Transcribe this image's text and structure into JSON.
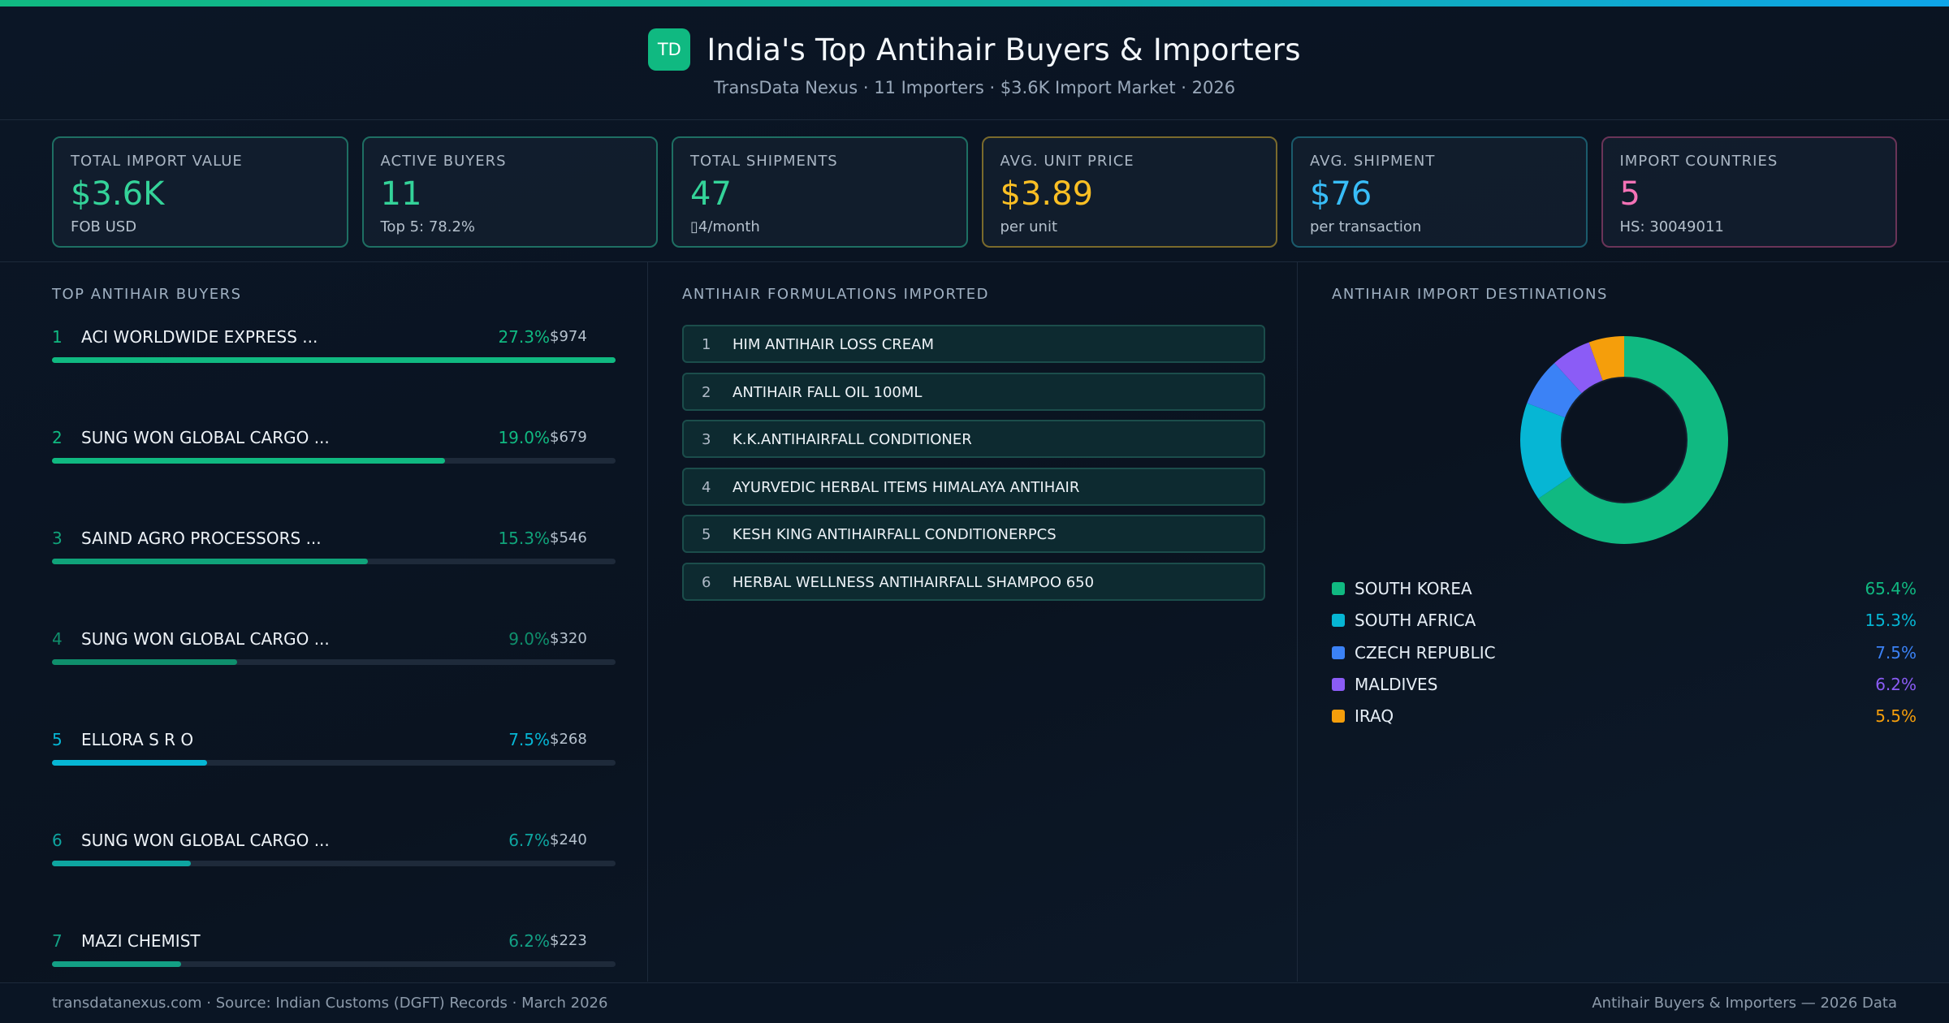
{
  "header": {
    "logo_text": "TD",
    "title": "India's Top Antihair Buyers & Importers",
    "subtitle": "TransData Nexus · 11 Importers · $3.6K Import Market · 2026"
  },
  "kpis": [
    {
      "label": "TOTAL IMPORT VALUE",
      "value": "$3.6K",
      "sub": "FOB USD",
      "color": "#34d399"
    },
    {
      "label": "ACTIVE BUYERS",
      "value": "11",
      "sub": "Top 5: 78.2%",
      "color": "#34d399"
    },
    {
      "label": "TOTAL SHIPMENTS",
      "value": "47",
      "sub": "▯4/month",
      "color": "#34d399"
    },
    {
      "label": "AVG. UNIT PRICE",
      "value": "$3.89",
      "sub": "per unit",
      "color": "#fbbf24"
    },
    {
      "label": "AVG. SHIPMENT",
      "value": "$76",
      "sub": "per transaction",
      "color": "#38bdf8"
    },
    {
      "label": "IMPORT COUNTRIES",
      "value": "5",
      "sub": "HS: 30049011",
      "color": "#f472b6"
    }
  ],
  "buyers_title": "TOP ANTIHAIR BUYERS",
  "buyers": [
    {
      "rank": "1",
      "name": "ACI WORLDWIDE EXPRESS ...",
      "pct_text": "27.3%",
      "value": "$974",
      "share": 1.0,
      "color": "#10b981"
    },
    {
      "rank": "2",
      "name": "SUNG WON GLOBAL CARGO ...",
      "pct_text": "19.0%",
      "value": "$679",
      "share": 0.697,
      "color": "#10b981"
    },
    {
      "rank": "3",
      "name": "SAIND AGRO PROCESSORS ...",
      "pct_text": "15.3%",
      "value": "$546",
      "share": 0.561,
      "color": "#10a37a"
    },
    {
      "rank": "4",
      "name": "SUNG WON GLOBAL CARGO ...",
      "pct_text": "9.0%",
      "value": "$320",
      "share": 0.329,
      "color": "#0f8f6c"
    },
    {
      "rank": "5",
      "name": "ELLORA S R O",
      "pct_text": "7.5%",
      "value": "$268",
      "share": 0.275,
      "color": "#06b6d4"
    },
    {
      "rank": "6",
      "name": "SUNG WON GLOBAL CARGO ...",
      "pct_text": "6.7%",
      "value": "$240",
      "share": 0.246,
      "color": "#0ea5a0"
    },
    {
      "rank": "7",
      "name": "MAZI CHEMIST",
      "pct_text": "6.2%",
      "value": "$223",
      "share": 0.229,
      "color": "#13a085"
    }
  ],
  "products_title": "ANTIHAIR FORMULATIONS IMPORTED",
  "products": [
    {
      "rank": "1",
      "name": "HIM ANTIHAIR LOSS CREAM"
    },
    {
      "rank": "2",
      "name": "ANTIHAIR FALL OIL 100ML"
    },
    {
      "rank": "3",
      "name": "K.K.ANTIHAIRFALL CONDITIONER"
    },
    {
      "rank": "4",
      "name": "AYURVEDIC HERBAL ITEMS HIMALAYA ANTIHAIR"
    },
    {
      "rank": "5",
      "name": "KESH KING ANTIHAIRFALL CONDITIONERPCS"
    },
    {
      "rank": "6",
      "name": "HERBAL WELLNESS ANTIHAIRFALL SHAMPOO 650"
    }
  ],
  "destinations_title": "ANTIHAIR IMPORT DESTINATIONS",
  "chart_data": {
    "type": "pie",
    "title": "ANTIHAIR IMPORT DESTINATIONS",
    "categories": [
      "SOUTH KOREA",
      "SOUTH AFRICA",
      "CZECH REPUBLIC",
      "MALDIVES",
      "IRAQ"
    ],
    "values": [
      65.4,
      15.3,
      7.5,
      6.2,
      5.5
    ],
    "labels": [
      "65.4%",
      "15.3%",
      "7.5%",
      "6.2%",
      "5.5%"
    ],
    "colors": [
      "#10b981",
      "#06b6d4",
      "#3b82f6",
      "#8b5cf6",
      "#f59e0b"
    ],
    "donut": true
  },
  "footer": {
    "left": "transdatanexus.com · Source: Indian Customs (DGFT) Records · March 2026",
    "right": "Antihair Buyers & Importers — 2026 Data"
  }
}
